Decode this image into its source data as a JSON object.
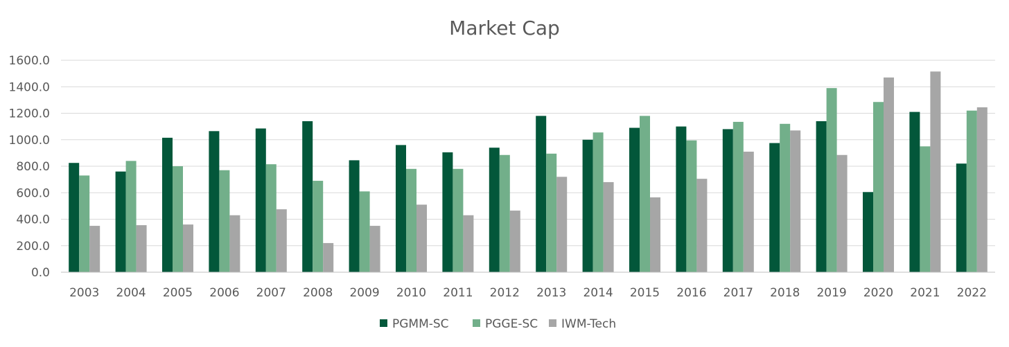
{
  "chart_data": {
    "type": "bar",
    "title": "Market Cap",
    "xlabel": "",
    "ylabel": "",
    "ylim": [
      0,
      1600
    ],
    "yticks": [
      0,
      200,
      400,
      600,
      800,
      1000,
      1200,
      1400,
      1600
    ],
    "ytick_labels": [
      "0.0",
      "200.0",
      "400.0",
      "600.0",
      "800.0",
      "1000.0",
      "1200.0",
      "1400.0",
      "1600.0"
    ],
    "grid": true,
    "legend_position": "bottom",
    "categories": [
      "2003",
      "2004",
      "2005",
      "2006",
      "2007",
      "2008",
      "2009",
      "2010",
      "2011",
      "2012",
      "2013",
      "2014",
      "2015",
      "2016",
      "2017",
      "2018",
      "2019",
      "2020",
      "2021",
      "2022"
    ],
    "series": [
      {
        "name": "PGMM-SC",
        "color": "#03573A",
        "values": [
          825,
          760,
          1015,
          1065,
          1085,
          1140,
          845,
          960,
          905,
          940,
          1180,
          1000,
          1090,
          1100,
          1080,
          975,
          1140,
          605,
          1210,
          820
        ]
      },
      {
        "name": "PGGE-SC",
        "color": "#72AF8A",
        "values": [
          730,
          840,
          800,
          770,
          815,
          690,
          610,
          780,
          780,
          885,
          895,
          1055,
          1180,
          995,
          1135,
          1120,
          1390,
          1285,
          950,
          1220
        ]
      },
      {
        "name": "IWM-Tech",
        "color": "#A6A6A6",
        "values": [
          350,
          355,
          360,
          430,
          475,
          220,
          350,
          510,
          430,
          465,
          720,
          680,
          565,
          705,
          910,
          1070,
          885,
          1470,
          1515,
          1245
        ]
      }
    ]
  }
}
